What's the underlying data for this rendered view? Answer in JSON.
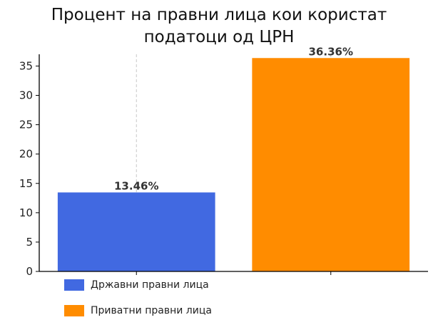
{
  "chart_data": {
    "type": "bar",
    "title_lines": [
      "Процент на правни лица кои користат",
      "податоци од ЦРН"
    ],
    "xlabel": "",
    "ylabel": "",
    "ylim": [
      0,
      37
    ],
    "yticks": [
      "0",
      "5",
      "10",
      "15",
      "20",
      "25",
      "30",
      "35"
    ],
    "grid": true,
    "legend_position": "bottom",
    "series": [
      {
        "name": "Државни правни лица",
        "value": 13.46,
        "label": "13.46%",
        "color": "#4169E1"
      },
      {
        "name": "Приватни правни лица",
        "value": 36.36,
        "label": "36.36%",
        "color": "#FF8C00"
      }
    ]
  }
}
